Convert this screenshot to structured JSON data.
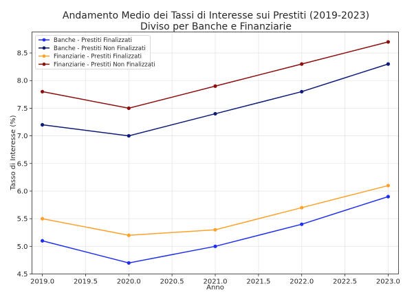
{
  "chart_data": {
    "type": "line",
    "title": "Andamento Medio dei Tassi di Interesse sui Prestiti (2019-2023)",
    "subtitle": "Diviso per Banche e Finanziarie",
    "xlabel": "Anno",
    "ylabel": "Tasso di Interesse (%)",
    "x": [
      2019,
      2020,
      2021,
      2022,
      2023
    ],
    "xlim": [
      2018.88,
      2023.12
    ],
    "ylim": [
      4.5,
      8.88
    ],
    "xticks": [
      2019.0,
      2019.5,
      2020.0,
      2020.5,
      2021.0,
      2021.5,
      2022.0,
      2022.5,
      2023.0
    ],
    "yticks": [
      4.5,
      5.0,
      5.5,
      6.0,
      6.5,
      7.0,
      7.5,
      8.0,
      8.5
    ],
    "grid": true,
    "legend_position": "top-left",
    "series": [
      {
        "name": "Banche - Prestiti Finalizzati",
        "color": "#1f2ff0",
        "values": [
          5.1,
          4.7,
          5.0,
          5.4,
          5.9
        ]
      },
      {
        "name": "Banche - Prestiti Non Finalizzati",
        "color": "#0c1a78",
        "values": [
          7.2,
          7.0,
          7.4,
          7.8,
          8.3
        ]
      },
      {
        "name": "Finanziarie - Prestiti Finalizzati",
        "color": "#ffa22b",
        "values": [
          5.5,
          5.2,
          5.3,
          5.7,
          6.1
        ]
      },
      {
        "name": "Finanziarie - Prestiti Non Finalizzati",
        "color": "#8b0d0d",
        "values": [
          7.8,
          7.5,
          7.9,
          8.3,
          8.7
        ]
      }
    ]
  }
}
